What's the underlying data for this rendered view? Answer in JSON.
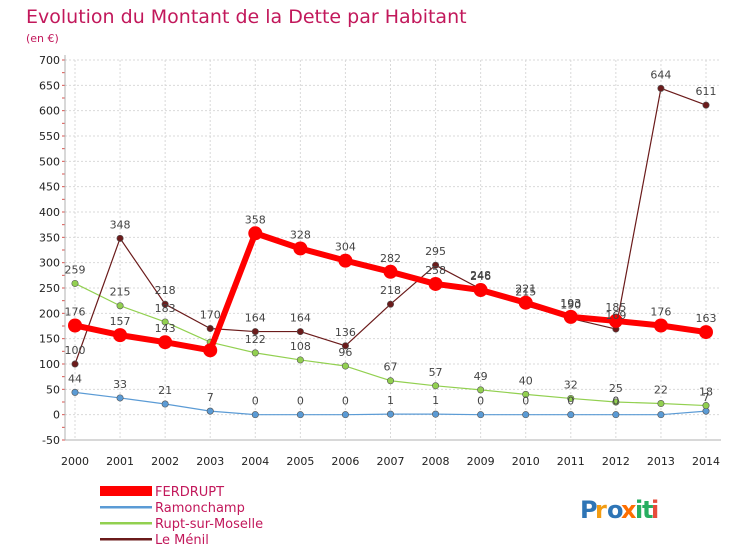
{
  "chart_data": {
    "type": "line",
    "title": "Evolution du Montant de la Dette par Habitant",
    "subtitle": "(en €)",
    "ylim": [
      -50,
      700
    ],
    "yticks": [
      -50,
      0,
      50,
      100,
      150,
      200,
      250,
      300,
      350,
      400,
      450,
      500,
      550,
      600,
      650,
      700
    ],
    "x": [
      "2000",
      "2001",
      "2002",
      "2003",
      "2004",
      "2005",
      "2006",
      "2007",
      "2008",
      "2009",
      "2010",
      "2011",
      "2012",
      "2013",
      "2014"
    ],
    "grid": true,
    "legend_position": "bottom-left",
    "series": [
      {
        "name": "FERDRUPT",
        "color": "#ff0000",
        "emphasis": true,
        "values": [
          176,
          157,
          143,
          127,
          358,
          328,
          304,
          282,
          258,
          246,
          221,
          193,
          185,
          176,
          163
        ],
        "labels": [
          "176",
          "157",
          "143",
          "",
          "358",
          "328",
          "304",
          "282",
          "258",
          "246",
          "221",
          "193",
          "185",
          "176",
          "163"
        ]
      },
      {
        "name": "Ramonchamp",
        "color": "#5b9bd5",
        "values": [
          44,
          33,
          21,
          7,
          0,
          0,
          0,
          1,
          1,
          0,
          0,
          0,
          0,
          0,
          7
        ],
        "labels": [
          "44",
          "33",
          "21",
          "7",
          "0",
          "0",
          "0",
          "1",
          "1",
          "0",
          "0",
          "0",
          "0",
          "",
          "7"
        ]
      },
      {
        "name": "Rupt-sur-Moselle",
        "color": "#92d050",
        "values": [
          259,
          215,
          183,
          143,
          122,
          108,
          96,
          67,
          57,
          49,
          40,
          32,
          25,
          22,
          18
        ],
        "labels": [
          "259",
          "215",
          "183",
          "",
          "122",
          "108",
          "96",
          "67",
          "57",
          "49",
          "40",
          "32",
          "25",
          "22",
          "18"
        ]
      },
      {
        "name": "Le Ménil",
        "color": "#6b1b1b",
        "values": [
          100,
          348,
          218,
          170,
          164,
          164,
          136,
          218,
          295,
          248,
          215,
          190,
          169,
          644,
          611
        ],
        "labels": [
          "100",
          "348",
          "218",
          "170",
          "164",
          "164",
          "136",
          "218",
          "295",
          "248",
          "215",
          "190",
          "169",
          "644",
          "611"
        ]
      }
    ]
  },
  "logo": {
    "text": "Proxiti"
  }
}
